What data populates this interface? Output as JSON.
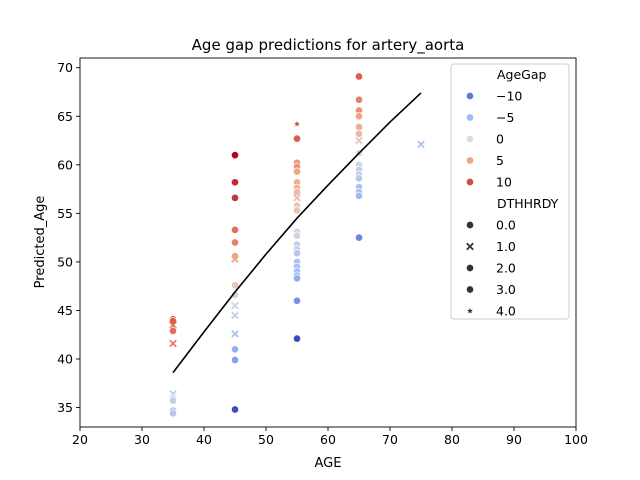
{
  "chart_data": {
    "type": "scatter",
    "title": "Age gap predictions for artery_aorta",
    "xlabel": "AGE",
    "ylabel": "Predicted_Age",
    "xlim": [
      20,
      100
    ],
    "ylim": [
      33,
      71
    ],
    "xticks": [
      20,
      30,
      40,
      50,
      60,
      70,
      80,
      90,
      100
    ],
    "yticks": [
      35,
      40,
      45,
      50,
      55,
      60,
      65,
      70
    ],
    "grid": false,
    "legend_placement": "top-right",
    "legend": {
      "hue_title": "AgeGap",
      "hue_entries": [
        {
          "label": "−10",
          "value": -10,
          "color": "#5b7bd6"
        },
        {
          "label": "−5",
          "value": -5,
          "color": "#9dbcf7"
        },
        {
          "label": "0",
          "value": 0,
          "color": "#dcdcdc"
        },
        {
          "label": "5",
          "value": 5,
          "color": "#f2a585"
        },
        {
          "label": "10",
          "value": 10,
          "color": "#d24b40"
        }
      ],
      "style_title": "DTHHRDY",
      "style_entries": [
        {
          "label": "0.0",
          "marker": "circle"
        },
        {
          "label": "1.0",
          "marker": "x"
        },
        {
          "label": "2.0",
          "marker": "circle"
        },
        {
          "label": "3.0",
          "marker": "circle"
        },
        {
          "label": "4.0",
          "marker": "star"
        }
      ]
    },
    "points": [
      {
        "x": 35,
        "y": 44.1,
        "gap": 9,
        "dthhrdy": 0.0
      },
      {
        "x": 35,
        "y": 43.9,
        "gap": 9,
        "dthhrdy": 0.0
      },
      {
        "x": 35,
        "y": 43.5,
        "gap": 8,
        "dthhrdy": 1.0
      },
      {
        "x": 35,
        "y": 42.9,
        "gap": 8,
        "dthhrdy": 0.0
      },
      {
        "x": 35,
        "y": 41.6,
        "gap": 7,
        "dthhrdy": 1.0
      },
      {
        "x": 35,
        "y": 36.4,
        "gap": -2,
        "dthhrdy": 1.0
      },
      {
        "x": 35,
        "y": 35.9,
        "gap": -2,
        "dthhrdy": 0.0
      },
      {
        "x": 35,
        "y": 35.7,
        "gap": -2,
        "dthhrdy": 0.0
      },
      {
        "x": 35,
        "y": 34.7,
        "gap": -3,
        "dthhrdy": 0.0
      },
      {
        "x": 35,
        "y": 34.4,
        "gap": -3,
        "dthhrdy": 0.0
      },
      {
        "x": 45,
        "y": 61.0,
        "gap": 16,
        "dthhrdy": 0.0
      },
      {
        "x": 45,
        "y": 58.2,
        "gap": 13,
        "dthhrdy": 0.0
      },
      {
        "x": 45,
        "y": 56.6,
        "gap": 12,
        "dthhrdy": 0.0
      },
      {
        "x": 45,
        "y": 53.3,
        "gap": 8,
        "dthhrdy": 0.0
      },
      {
        "x": 45,
        "y": 52.0,
        "gap": 7,
        "dthhrdy": 0.0
      },
      {
        "x": 45,
        "y": 50.6,
        "gap": 5,
        "dthhrdy": 0.0
      },
      {
        "x": 45,
        "y": 50.3,
        "gap": 5,
        "dthhrdy": 1.0
      },
      {
        "x": 45,
        "y": 47.6,
        "gap": 2,
        "dthhrdy": 0.0
      },
      {
        "x": 45,
        "y": 46.6,
        "gap": 1,
        "dthhrdy": 0.0
      },
      {
        "x": 45,
        "y": 45.5,
        "gap": -1,
        "dthhrdy": 1.0
      },
      {
        "x": 45,
        "y": 44.5,
        "gap": -2,
        "dthhrdy": 1.0
      },
      {
        "x": 45,
        "y": 42.6,
        "gap": -4,
        "dthhrdy": 1.0
      },
      {
        "x": 45,
        "y": 41.0,
        "gap": -6,
        "dthhrdy": 0.0
      },
      {
        "x": 45,
        "y": 39.9,
        "gap": -7,
        "dthhrdy": 0.0
      },
      {
        "x": 45,
        "y": 34.8,
        "gap": -12,
        "dthhrdy": 0.0
      },
      {
        "x": 55,
        "y": 64.2,
        "gap": 10,
        "dthhrdy": 4.0
      },
      {
        "x": 55,
        "y": 62.7,
        "gap": 9,
        "dthhrdy": 0.0
      },
      {
        "x": 55,
        "y": 60.2,
        "gap": 6,
        "dthhrdy": 0.0
      },
      {
        "x": 55,
        "y": 59.8,
        "gap": 6,
        "dthhrdy": 0.0
      },
      {
        "x": 55,
        "y": 59.3,
        "gap": 5,
        "dthhrdy": 0.0
      },
      {
        "x": 55,
        "y": 58.2,
        "gap": 4,
        "dthhrdy": 0.0
      },
      {
        "x": 55,
        "y": 57.6,
        "gap": 4,
        "dthhrdy": 0.0
      },
      {
        "x": 55,
        "y": 57.2,
        "gap": 3,
        "dthhrdy": 0.0
      },
      {
        "x": 55,
        "y": 56.6,
        "gap": 3,
        "dthhrdy": 1.0
      },
      {
        "x": 55,
        "y": 55.8,
        "gap": 2,
        "dthhrdy": 0.0
      },
      {
        "x": 55,
        "y": 55.3,
        "gap": 2,
        "dthhrdy": 0.0
      },
      {
        "x": 55,
        "y": 53.1,
        "gap": -1,
        "dthhrdy": 0.0
      },
      {
        "x": 55,
        "y": 52.7,
        "gap": -1,
        "dthhrdy": 0.0
      },
      {
        "x": 55,
        "y": 51.8,
        "gap": -2,
        "dthhrdy": 0.0
      },
      {
        "x": 55,
        "y": 51.3,
        "gap": -2,
        "dthhrdy": 0.0
      },
      {
        "x": 55,
        "y": 50.9,
        "gap": -3,
        "dthhrdy": 0.0
      },
      {
        "x": 55,
        "y": 50.0,
        "gap": -4,
        "dthhrdy": 0.0
      },
      {
        "x": 55,
        "y": 49.5,
        "gap": -4,
        "dthhrdy": 0.0
      },
      {
        "x": 55,
        "y": 49.0,
        "gap": -5,
        "dthhrdy": 0.0
      },
      {
        "x": 55,
        "y": 48.6,
        "gap": -5,
        "dthhrdy": 0.0
      },
      {
        "x": 55,
        "y": 48.3,
        "gap": -6,
        "dthhrdy": 0.0
      },
      {
        "x": 55,
        "y": 46.0,
        "gap": -8,
        "dthhrdy": 0.0
      },
      {
        "x": 55,
        "y": 42.1,
        "gap": -12,
        "dthhrdy": 0.0
      },
      {
        "x": 65,
        "y": 69.1,
        "gap": 9,
        "dthhrdy": 0.0
      },
      {
        "x": 65,
        "y": 66.7,
        "gap": 7,
        "dthhrdy": 0.0
      },
      {
        "x": 65,
        "y": 65.6,
        "gap": 6,
        "dthhrdy": 0.0
      },
      {
        "x": 65,
        "y": 65.0,
        "gap": 5,
        "dthhrdy": 0.0
      },
      {
        "x": 65,
        "y": 63.9,
        "gap": 4,
        "dthhrdy": 0.0
      },
      {
        "x": 65,
        "y": 63.2,
        "gap": 3,
        "dthhrdy": 0.0
      },
      {
        "x": 65,
        "y": 62.5,
        "gap": 2,
        "dthhrdy": 1.0
      },
      {
        "x": 65,
        "y": 61.2,
        "gap": 0,
        "dthhrdy": 0.0
      },
      {
        "x": 65,
        "y": 60.0,
        "gap": -1,
        "dthhrdy": 0.0
      },
      {
        "x": 65,
        "y": 59.5,
        "gap": -2,
        "dthhrdy": 0.0
      },
      {
        "x": 65,
        "y": 59.0,
        "gap": -2,
        "dthhrdy": 0.0
      },
      {
        "x": 65,
        "y": 58.6,
        "gap": -3,
        "dthhrdy": 0.0
      },
      {
        "x": 65,
        "y": 57.7,
        "gap": -4,
        "dthhrdy": 0.0
      },
      {
        "x": 65,
        "y": 57.2,
        "gap": -4,
        "dthhrdy": 0.0
      },
      {
        "x": 65,
        "y": 56.8,
        "gap": -5,
        "dthhrdy": 0.0
      },
      {
        "x": 65,
        "y": 52.5,
        "gap": -9,
        "dthhrdy": 0.0
      },
      {
        "x": 75,
        "y": 62.1,
        "gap": -4,
        "dthhrdy": 1.0
      }
    ],
    "fit_line": {
      "color": "#000000",
      "points": [
        [
          35,
          38.6
        ],
        [
          40,
          42.8
        ],
        [
          45,
          46.9
        ],
        [
          50,
          50.8
        ],
        [
          55,
          54.5
        ],
        [
          60,
          57.9
        ],
        [
          65,
          61.2
        ],
        [
          70,
          64.4
        ],
        [
          75,
          67.4
        ]
      ]
    }
  }
}
